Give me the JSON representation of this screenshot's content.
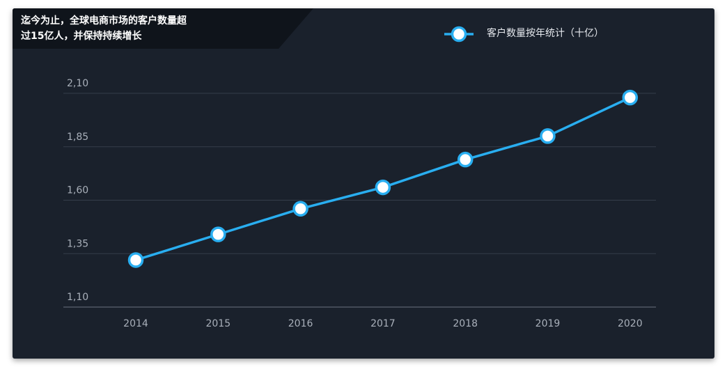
{
  "title_lines": [
    "迄今为止，全球电商市场的客户数量超",
    "过15亿人，并保持持续增长"
  ],
  "colors": {
    "background": "#1a212c",
    "title_tab": "#0f141b",
    "series": "#29aef0",
    "gridline": "#343d4a",
    "axis_text": "#a9b0ba"
  },
  "chart_data": {
    "type": "line",
    "title": "迄今为止，全球电商市场的客户数量超过15亿人，并保持持续增长",
    "xlabel": "",
    "ylabel": "",
    "categories": [
      "2014",
      "2015",
      "2016",
      "2017",
      "2018",
      "2019",
      "2020"
    ],
    "series": [
      {
        "name": "客户数量按年统计（十亿）",
        "values": [
          1.32,
          1.44,
          1.56,
          1.66,
          1.79,
          1.9,
          2.08
        ]
      }
    ],
    "ylim": [
      1.1,
      2.1
    ],
    "yticks": [
      1.1,
      1.35,
      1.6,
      1.85,
      2.1
    ],
    "ytick_labels": [
      "1,10",
      "1,35",
      "1,60",
      "1,85",
      "2,10"
    ],
    "grid": true,
    "legend": "top-right"
  }
}
